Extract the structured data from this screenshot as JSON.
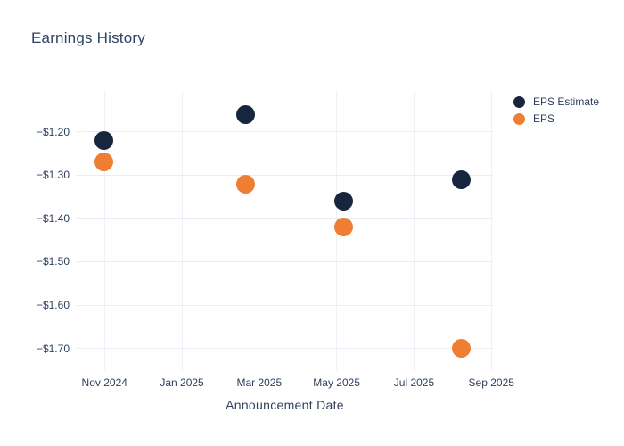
{
  "chart": {
    "title": "Earnings History",
    "xlabel": "Announcement Date"
  },
  "legend": {
    "items": [
      {
        "label": "EPS Estimate",
        "color": "#17253d"
      },
      {
        "label": "EPS",
        "color": "#ef7e33"
      }
    ]
  },
  "colors": {
    "background": "#ffffff",
    "title_text": "#2e4262",
    "axis_text": "#2e3f5c",
    "horizontal_gridline": "#e8ecf3",
    "vertical_gridline": "#eef1f7",
    "eps_estimate": "#17253d",
    "eps": "#ef7e33"
  },
  "chart_data": {
    "type": "scatter",
    "title": "Earnings History",
    "xlabel": "Announcement Date",
    "ylabel": "",
    "grid": true,
    "legend_position": "right-top",
    "x_tick_labels": [
      "Nov 2024",
      "Jan 2025",
      "Mar 2025",
      "May 2025",
      "Jul 2025",
      "Sep 2025"
    ],
    "x_tick_months": [
      0,
      2,
      4,
      6,
      8,
      10
    ],
    "xlim_months": [
      -0.72,
      10.04
    ],
    "y_tick_labels": [
      "−$1.20",
      "−$1.30",
      "−$1.40",
      "−$1.50",
      "−$1.60",
      "−$1.70"
    ],
    "y_tick_values": [
      -1.2,
      -1.3,
      -1.4,
      -1.5,
      -1.6,
      -1.7
    ],
    "ylim": [
      -1.7505,
      -1.1052
    ],
    "x_months": [
      -0.02,
      3.65,
      6.19,
      9.23
    ],
    "x_dates_approx": [
      "2024-10-31",
      "2025-02-20",
      "2025-05-08",
      "2025-08-08"
    ],
    "series": [
      {
        "name": "EPS Estimate",
        "color": "#17253d",
        "values": [
          -1.22,
          -1.16,
          -1.36,
          -1.31
        ]
      },
      {
        "name": "EPS",
        "color": "#ef7e33",
        "values": [
          -1.27,
          -1.32,
          -1.42,
          -1.7
        ]
      }
    ]
  }
}
